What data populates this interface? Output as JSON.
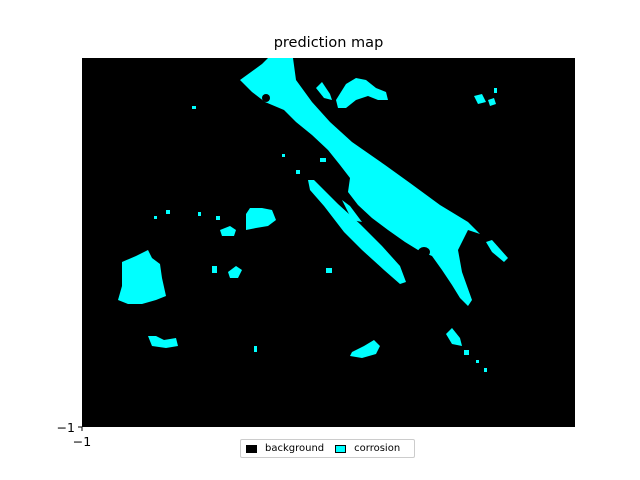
{
  "chart_data": {
    "type": "heatmap",
    "title": "prediction map",
    "xlabel": "",
    "ylabel": "",
    "x_ticks": [
      "−1"
    ],
    "y_ticks": [
      "−1"
    ],
    "classes": [
      {
        "name": "background",
        "color": "#000000"
      },
      {
        "name": "corrosion",
        "color": "#00ffff"
      }
    ],
    "legend_position": "bottom-center"
  }
}
